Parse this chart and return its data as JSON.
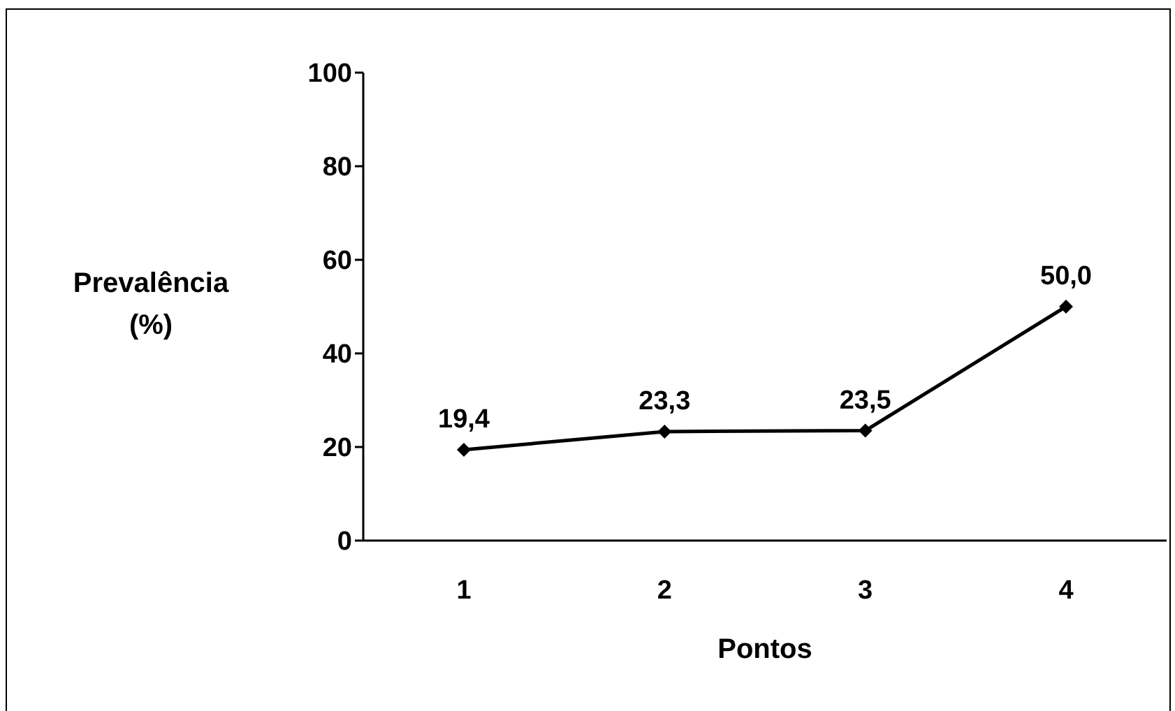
{
  "chart_data": {
    "type": "line",
    "xlabel": "Pontos",
    "ylabel": "Prevalência (%)",
    "categories": [
      "1",
      "2",
      "3",
      "4"
    ],
    "series": [
      {
        "color": "#000000",
        "values": [
          19.4,
          23.3,
          23.5,
          50.0
        ],
        "value_labels": [
          "19,4",
          "23,3",
          "23,5",
          "50,0"
        ]
      }
    ],
    "ylim": [
      0,
      100
    ],
    "yticks": [
      0,
      20,
      40,
      60,
      80,
      100
    ],
    "marker": "diamond",
    "line_style": "solid",
    "grid": false,
    "legend": false
  }
}
